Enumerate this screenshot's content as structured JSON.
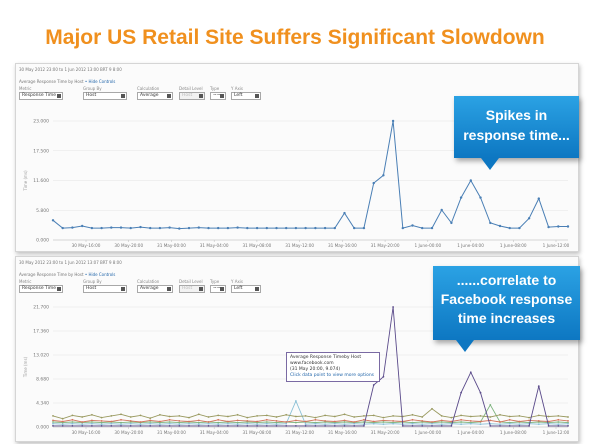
{
  "slide": {
    "title": "Major US Retail Site Suffers Significant Slowdown"
  },
  "panel1": {
    "date_range": "30 May 2012 23:00 to 1 Jun 2012 13:00 BRT 9 8:00",
    "chart_caption": "Average Response Time by Host",
    "hide_controls": "• Hide Controls",
    "controls": [
      {
        "label": "Metric",
        "value": "Response Time"
      },
      {
        "label": "Group By",
        "value": "Host"
      },
      {
        "label": "Calculation",
        "value": "Average"
      },
      {
        "label": "Detail Level",
        "value": "Host"
      },
      {
        "label": "Type",
        "value": "~~"
      },
      {
        "label": "Y Axis",
        "value": "Left"
      }
    ],
    "axis_title": "Time (ms)",
    "chart_data": {
      "type": "line",
      "y_ticks": [
        "0.000",
        "5.800",
        "11.600",
        "17.500",
        "23.000"
      ],
      "ylim": [
        0,
        23000
      ],
      "x_ticks": [
        "30 May-16:00",
        "30 May-20:00",
        "31 May-00:00",
        "31 May-04:00",
        "31 May-08:00",
        "31 May-12:00",
        "31 May-16:00",
        "31 May-20:00",
        "1 June-00:00",
        "1 June-04:00",
        "1 June-08:00",
        "1 June-12:00"
      ],
      "series": [
        {
          "color": "#4a7fb5",
          "values": [
            3800,
            2300,
            2400,
            2700,
            2300,
            2300,
            2400,
            2400,
            2300,
            2500,
            2300,
            2300,
            2400,
            2200,
            2300,
            2400,
            2300,
            2300,
            2300,
            2400,
            2300,
            2300,
            2300,
            2300,
            2300,
            2300,
            2300,
            2300,
            2300,
            2300,
            5200,
            2300,
            2300,
            11000,
            12500,
            23000,
            2300,
            2800,
            2300,
            2300,
            5800,
            3300,
            8200,
            11500,
            8200,
            3300,
            2700,
            2300,
            2300,
            4200,
            8000,
            2500,
            2600,
            2600
          ]
        }
      ]
    }
  },
  "panel2": {
    "date_range": "30 May 2012 23:00 to 1 Jun 2012 13:07 BRT 9 8:00",
    "chart_caption": "Average Response Time by Host",
    "hide_controls": "• Hide Controls",
    "controls": [
      {
        "label": "Metric",
        "value": "Response Time"
      },
      {
        "label": "Group By",
        "value": "Host"
      },
      {
        "label": "Calculation",
        "value": "Average"
      },
      {
        "label": "Detail Level",
        "value": "Host"
      },
      {
        "label": "Type",
        "value": "~~"
      },
      {
        "label": "Y Axis",
        "value": "Left"
      }
    ],
    "axis_title": "Time (ms)",
    "chart_data": {
      "type": "line",
      "y_ticks": [
        "0.000",
        "4.340",
        "8.680",
        "13.020",
        "17.360",
        "21.700"
      ],
      "ylim": [
        0,
        21700
      ],
      "x_ticks": [
        "30 May-16:00",
        "30 May-20:00",
        "31 May-00:00",
        "31 May-04:00",
        "31 May-08:00",
        "31 May-12:00",
        "31 May-16:00",
        "31 May-20:00",
        "1 June-00:00",
        "1 June-04:00",
        "1 June-08:00",
        "1 June-12:00"
      ],
      "series": [
        {
          "color": "#5a4a8a",
          "values": [
            200,
            200,
            200,
            200,
            200,
            200,
            200,
            200,
            200,
            200,
            200,
            200,
            200,
            200,
            200,
            200,
            200,
            200,
            200,
            200,
            200,
            200,
            200,
            200,
            200,
            200,
            200,
            200,
            200,
            200,
            200,
            200,
            200,
            7600,
            9074,
            21700,
            200,
            200,
            200,
            200,
            200,
            200,
            6200,
            9900,
            6200,
            200,
            200,
            200,
            200,
            200,
            7400,
            200,
            200,
            200
          ]
        },
        {
          "color": "#9a9a60",
          "values": [
            2000,
            1500,
            2100,
            1800,
            2200,
            1700,
            2000,
            2300,
            1800,
            2100,
            1600,
            2200,
            1900,
            2000,
            1700,
            2300,
            1800,
            2100,
            1900,
            2200,
            1700,
            2000,
            2100,
            1800,
            2200,
            1900,
            2000,
            1700,
            2100,
            1900,
            2300,
            1800,
            2000,
            2100,
            1700,
            2000,
            1900,
            2200,
            1800,
            3300,
            2000,
            1700,
            2100,
            1900,
            2000,
            1800,
            2200,
            1900,
            2000,
            1700,
            2100,
            1900,
            2000,
            1800
          ]
        },
        {
          "color": "#d2735a",
          "values": [
            1200,
            1000,
            1300,
            900,
            1200,
            1100,
            1000,
            1300,
            1100,
            900,
            1200,
            1000,
            1300,
            1100,
            1000,
            1200,
            900,
            1300,
            1000,
            1200,
            1100,
            1000,
            1300,
            1100,
            900,
            1200,
            1000,
            1300,
            1100,
            1000,
            1200,
            900,
            1300,
            1000,
            1200,
            1100,
            1000,
            1300,
            1100,
            900,
            1200,
            1000,
            1300,
            1100,
            1000,
            1200,
            900,
            1300,
            1000,
            1200,
            1100,
            1000,
            1300,
            1100
          ]
        },
        {
          "color": "#8ac0d6",
          "values": [
            600,
            500,
            600,
            500,
            600,
            500,
            600,
            500,
            600,
            500,
            600,
            500,
            600,
            500,
            600,
            500,
            600,
            500,
            600,
            500,
            600,
            500,
            600,
            500,
            600,
            4700,
            500,
            600,
            500,
            600,
            500,
            600,
            500,
            600,
            500,
            600,
            500,
            600,
            500,
            600,
            500,
            600,
            500,
            600,
            500,
            600,
            500,
            600,
            500,
            600,
            500,
            600,
            500,
            600
          ]
        },
        {
          "color": "#7db37d",
          "values": [
            900,
            800,
            900,
            800,
            900,
            800,
            900,
            800,
            900,
            800,
            900,
            800,
            900,
            800,
            900,
            800,
            900,
            800,
            900,
            800,
            900,
            800,
            900,
            800,
            900,
            800,
            900,
            800,
            900,
            800,
            900,
            800,
            900,
            800,
            900,
            800,
            900,
            800,
            900,
            800,
            900,
            800,
            900,
            800,
            900,
            4000,
            900,
            800,
            900,
            800,
            900,
            800,
            900,
            800
          ]
        }
      ]
    }
  },
  "tooltip": {
    "title": "Average Response Timeby Host",
    "host": "www.facebook.com",
    "value": "(31 May 20:00, 9.074)",
    "hint": "Click data point to view more options"
  },
  "callout1": {
    "line1": "Spikes in",
    "line2": "response time..."
  },
  "callout2": {
    "line1": "......correlate to",
    "line2": "Facebook response",
    "line3": "time increases"
  }
}
